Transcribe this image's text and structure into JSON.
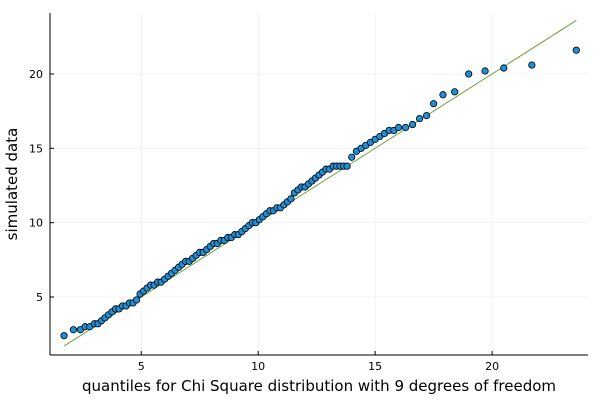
{
  "chart_data": {
    "type": "scatter",
    "xlabel": "quantiles for Chi Square distribution with 9 degrees of freedom",
    "ylabel": "simulated data",
    "xlim": [
      1.1,
      24.1
    ],
    "ylim": [
      1.1,
      24.1
    ],
    "xticks": [
      5,
      10,
      15,
      20
    ],
    "yticks": [
      5,
      10,
      15,
      20
    ],
    "grid": true,
    "legend": "none",
    "colors": {
      "points": "#1f8fd8",
      "line": "#6aa23c"
    },
    "reference_line": {
      "x": [
        1.7,
        23.6
      ],
      "y": [
        1.7,
        23.6
      ]
    },
    "series": [
      {
        "x": [
          1.7,
          2.1,
          2.4,
          2.6,
          2.8,
          3.0,
          3.15,
          3.3,
          3.45,
          3.6,
          3.75,
          3.9,
          4.05,
          4.2,
          4.35,
          4.5,
          4.65,
          4.8,
          4.95,
          5.1,
          5.25,
          5.4,
          5.55,
          5.7,
          5.85,
          6.0,
          6.15,
          6.3,
          6.45,
          6.6,
          6.75,
          6.9,
          7.05,
          7.2,
          7.35,
          7.5,
          7.65,
          7.8,
          7.95,
          8.1,
          8.25,
          8.4,
          8.55,
          8.7,
          8.85,
          9.0,
          9.15,
          9.3,
          9.45,
          9.6,
          9.75,
          9.9,
          10.05,
          10.2,
          10.35,
          10.5,
          10.65,
          10.8,
          10.95,
          11.1,
          11.25,
          11.4,
          11.55,
          11.7,
          11.85,
          12.0,
          12.15,
          12.3,
          12.45,
          12.6,
          12.75,
          12.9,
          13.05,
          13.2,
          13.35,
          13.5,
          13.65,
          13.8,
          14.0,
          14.2,
          14.4,
          14.6,
          14.8,
          15.0,
          15.2,
          15.4,
          15.6,
          15.8,
          16.0,
          16.3,
          16.6,
          16.9,
          17.2,
          17.5,
          17.9,
          18.4,
          19.0,
          19.7,
          20.5,
          21.7,
          23.6
        ],
        "y": [
          2.4,
          2.8,
          2.8,
          3.0,
          3.0,
          3.2,
          3.2,
          3.4,
          3.6,
          3.8,
          4.0,
          4.2,
          4.2,
          4.4,
          4.4,
          4.6,
          4.6,
          4.8,
          5.2,
          5.4,
          5.6,
          5.8,
          5.8,
          6.0,
          6.0,
          6.2,
          6.4,
          6.6,
          6.8,
          7.0,
          7.2,
          7.4,
          7.4,
          7.6,
          7.8,
          8.0,
          8.0,
          8.2,
          8.4,
          8.6,
          8.6,
          8.8,
          8.8,
          9.0,
          9.0,
          9.2,
          9.2,
          9.4,
          9.6,
          9.8,
          10.0,
          10.0,
          10.2,
          10.4,
          10.6,
          10.8,
          10.8,
          11.0,
          11.0,
          11.2,
          11.4,
          11.6,
          12.0,
          12.2,
          12.4,
          12.4,
          12.6,
          12.8,
          13.0,
          13.2,
          13.4,
          13.6,
          13.6,
          13.8,
          13.8,
          13.8,
          13.8,
          13.8,
          14.4,
          14.8,
          15.0,
          15.2,
          15.4,
          15.6,
          15.8,
          16.0,
          16.2,
          16.2,
          16.4,
          16.4,
          16.6,
          17.0,
          17.2,
          18.0,
          18.6,
          18.8,
          20.0,
          20.2,
          20.4,
          20.6,
          21.6
        ]
      }
    ]
  }
}
